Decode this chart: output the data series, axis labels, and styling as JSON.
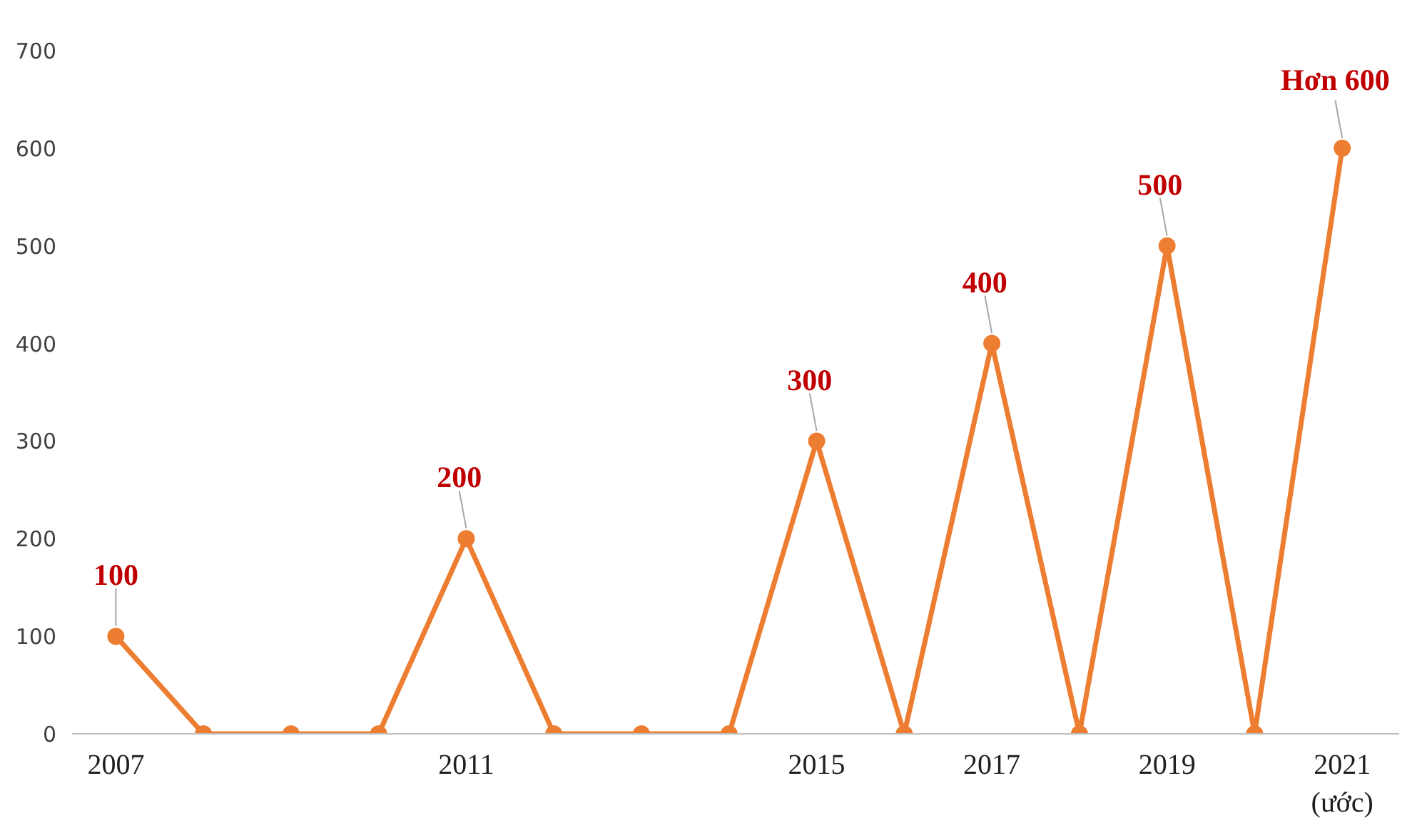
{
  "chart_data": {
    "type": "line",
    "categories": [
      "2007",
      null,
      null,
      null,
      "2011",
      null,
      null,
      null,
      "2015",
      null,
      "2017",
      null,
      "2019",
      null,
      "2021\n(ước)"
    ],
    "series": [
      {
        "color": "#ed7d31",
        "values": [
          100,
          0,
          0,
          0,
          200,
          0,
          0,
          0,
          300,
          0,
          400,
          0,
          500,
          0,
          600
        ],
        "value_labels": [
          "100",
          null,
          null,
          null,
          "200",
          null,
          null,
          null,
          "300",
          null,
          "400",
          null,
          "500",
          null,
          "Hơn 600"
        ]
      }
    ],
    "ylim": [
      0,
      700
    ],
    "yticks": [
      0,
      100,
      200,
      300,
      400,
      500,
      600,
      700
    ],
    "grid": false,
    "marker": "circle",
    "line_style": "solid"
  }
}
